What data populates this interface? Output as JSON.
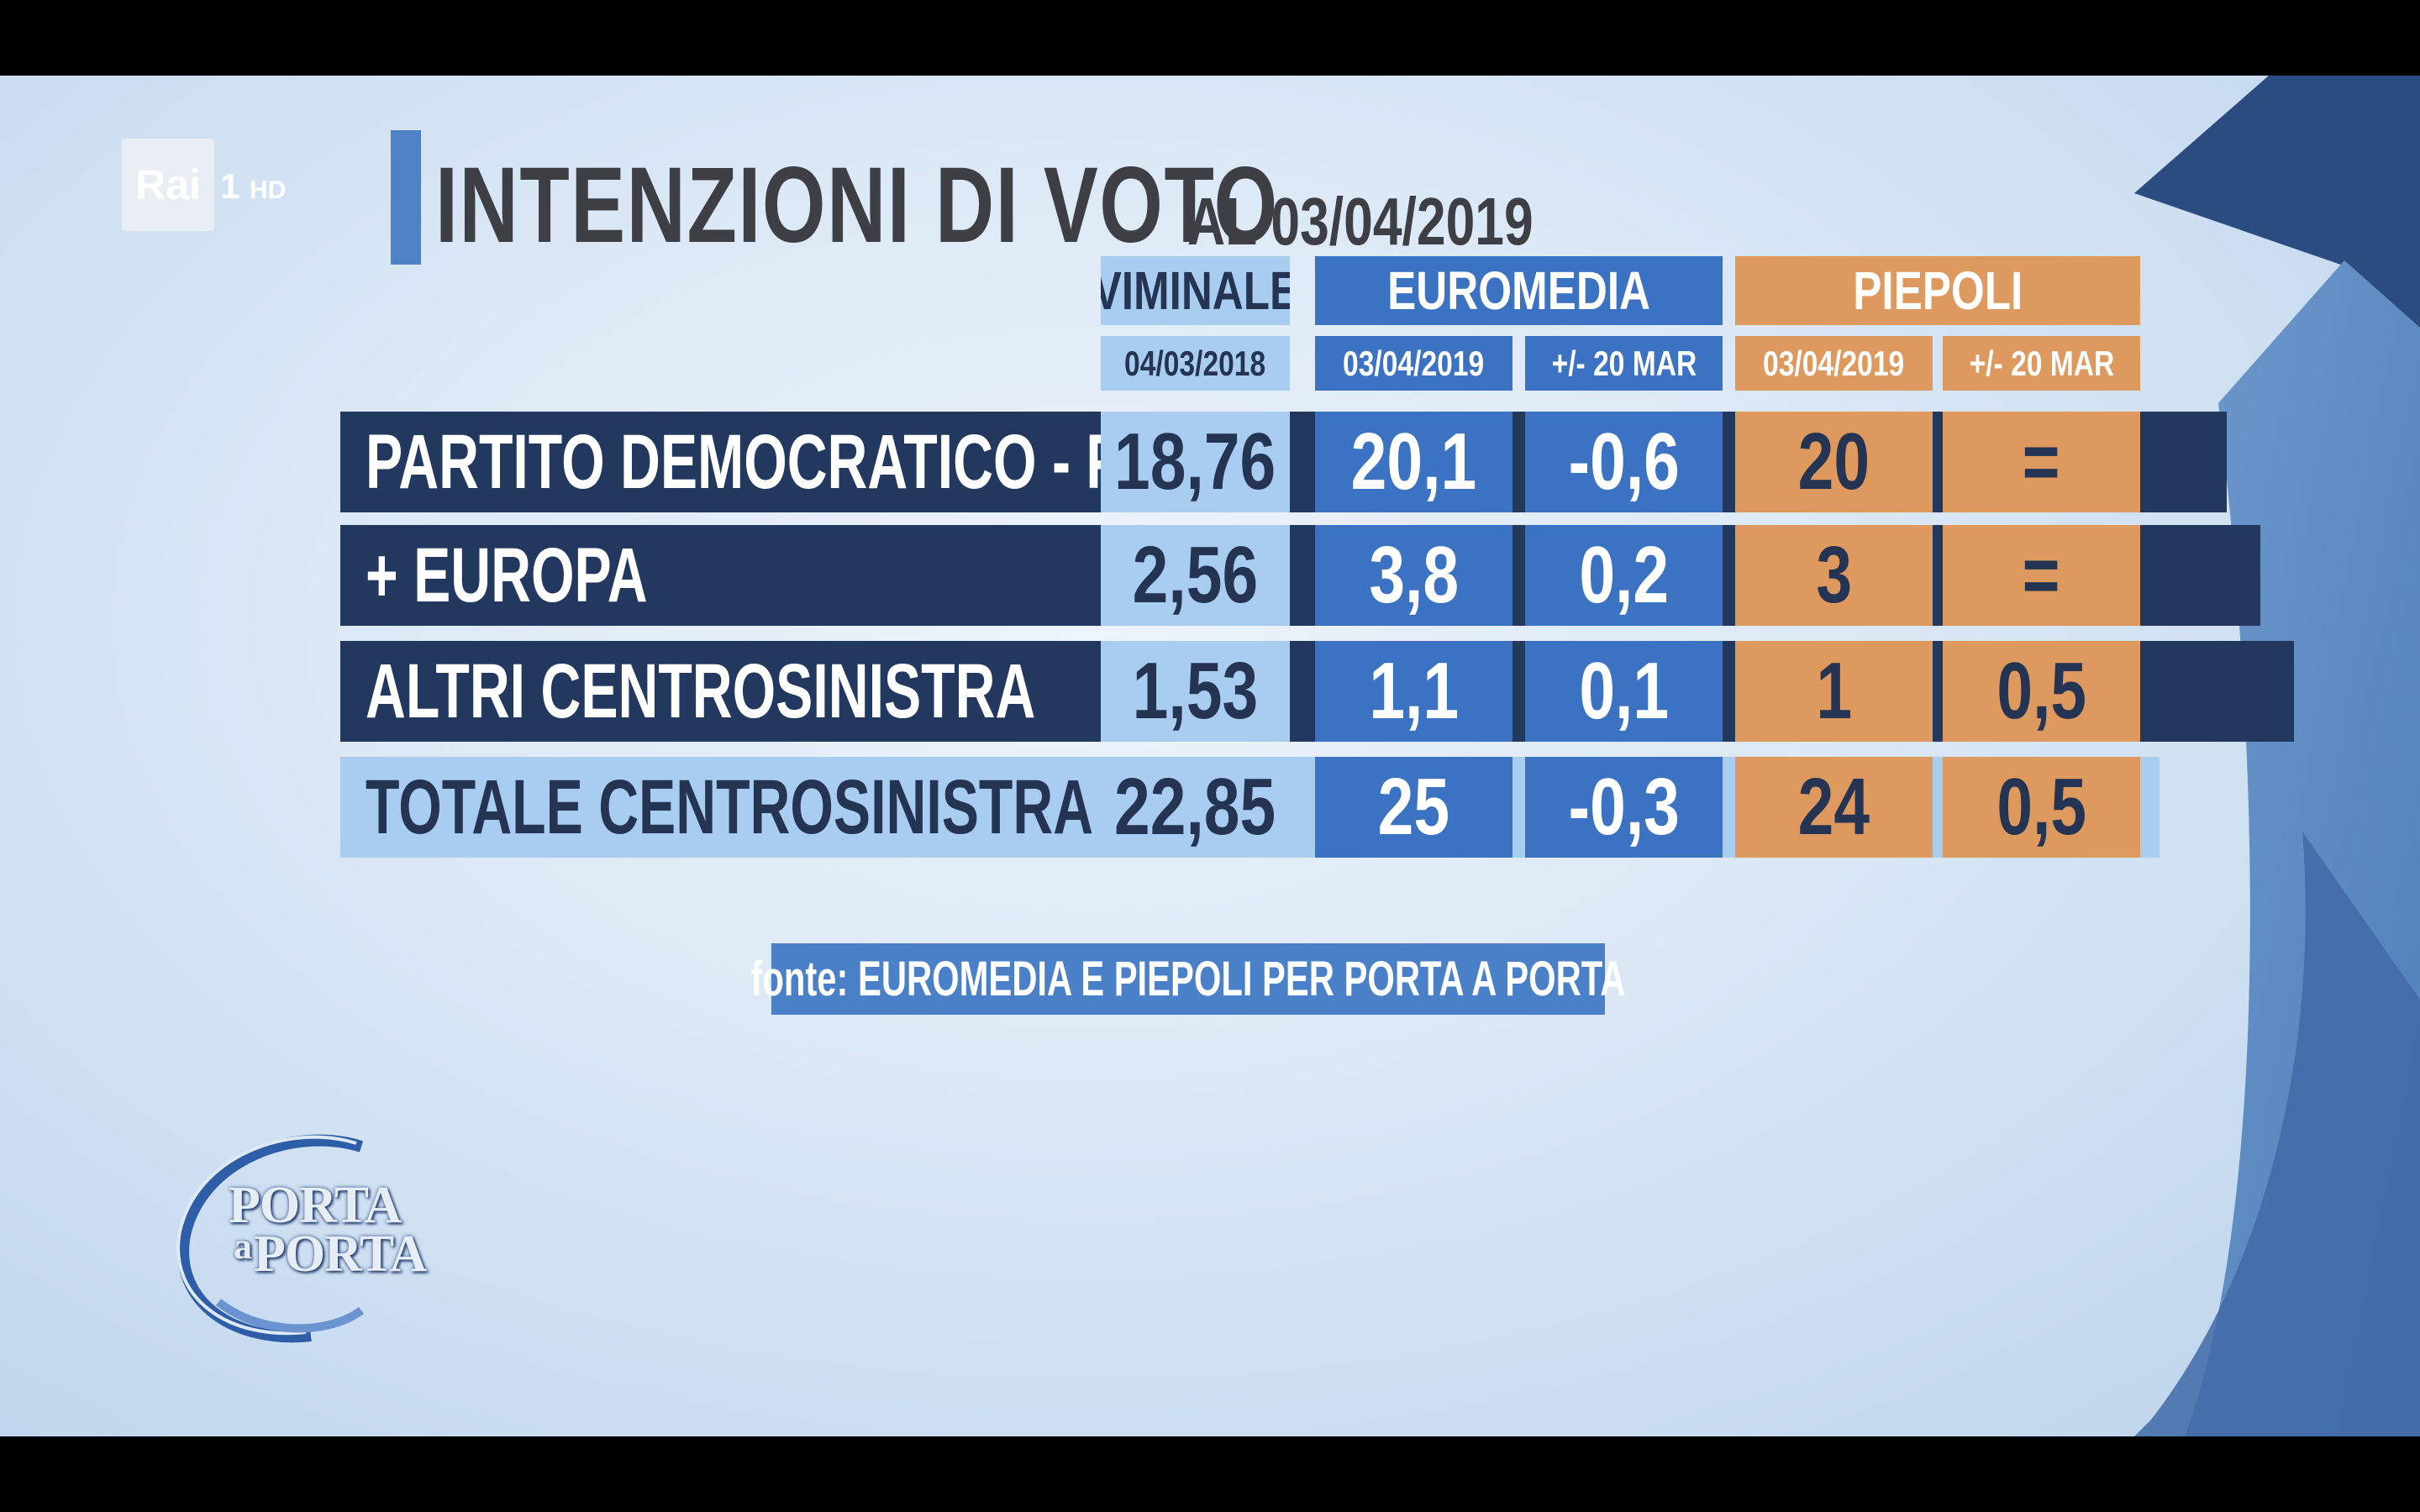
{
  "broadcast": {
    "logo_text": "Rai",
    "channel": "1",
    "quality": "HD",
    "show_logo_line1": "PORTA",
    "show_logo_small": "a",
    "show_logo_line2": "PORTA"
  },
  "colors": {
    "navy": "#22385e",
    "blue": "#3c72c2",
    "light_blue": "#a9cdf1",
    "orange": "#de9a5e",
    "text_dark": "#243452",
    "text_white": "#ffffff"
  },
  "chart_data": {
    "type": "table",
    "title": "INTENZIONI DI VOTO",
    "subtitle": "AL 03/04/2019",
    "groups": [
      {
        "name": "VIMINALE",
        "subheaders": [
          "04/03/2018"
        ]
      },
      {
        "name": "EUROMEDIA",
        "subheaders": [
          "03/04/2019",
          "+/- 20 MAR"
        ]
      },
      {
        "name": "PIEPOLI",
        "subheaders": [
          "03/04/2019",
          "+/- 20 MAR"
        ]
      }
    ],
    "rows": [
      {
        "label": "PARTITO DEMOCRATICO - PSE",
        "values": [
          "18,76",
          "20,1",
          "-0,6",
          "20",
          "="
        ]
      },
      {
        "label": "+ EUROPA",
        "values": [
          "2,56",
          "3,8",
          "0,2",
          "3",
          "="
        ]
      },
      {
        "label": "ALTRI CENTROSINISTRA",
        "values": [
          "1,53",
          "1,1",
          "0,1",
          "1",
          "0,5"
        ]
      },
      {
        "label": "TOTALE CENTROSINISTRA",
        "values": [
          "22,85",
          "25",
          "-0,3",
          "24",
          "0,5"
        ],
        "total": true
      }
    ],
    "source": "fonte: EUROMEDIA E PIEPOLI PER PORTA A PORTA"
  }
}
